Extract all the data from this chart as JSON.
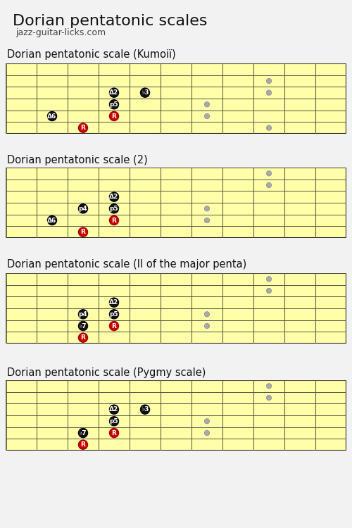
{
  "title": "Dorian pentatonic scales",
  "subtitle": "jazz-guitar-licks.com",
  "bg_color": "#f2f2f2",
  "fretboard_bg": "#ffffaa",
  "diagrams": [
    {
      "title": "Dorian pentatonic scale (Kumoiï)",
      "dots": [
        {
          "fret": 2,
          "string": 4,
          "label": "Δ6",
          "color": "black"
        },
        {
          "fret": 4,
          "string": 4,
          "label": "R",
          "color": "red"
        },
        {
          "fret": 4,
          "string": 3,
          "label": "p5",
          "color": "black"
        },
        {
          "fret": 4,
          "string": 2,
          "label": "Δ2",
          "color": "black"
        },
        {
          "fret": 5,
          "string": 2,
          "label": "♭3",
          "color": "black"
        },
        {
          "fret": 3,
          "string": 5,
          "label": "R",
          "color": "red"
        },
        {
          "fret": 9,
          "string": 5,
          "label": "",
          "color": "gray"
        },
        {
          "fret": 7,
          "string": 4,
          "label": "",
          "color": "gray"
        },
        {
          "fret": 7,
          "string": 3,
          "label": "",
          "color": "gray"
        },
        {
          "fret": 9,
          "string": 2,
          "label": "",
          "color": "gray"
        },
        {
          "fret": 9,
          "string": 1,
          "label": "",
          "color": "gray"
        }
      ]
    },
    {
      "title": "Dorian pentatonic scale (2)",
      "dots": [
        {
          "fret": 2,
          "string": 4,
          "label": "Δ6",
          "color": "black"
        },
        {
          "fret": 4,
          "string": 4,
          "label": "R",
          "color": "red"
        },
        {
          "fret": 3,
          "string": 3,
          "label": "p4",
          "color": "black"
        },
        {
          "fret": 4,
          "string": 3,
          "label": "p5",
          "color": "black"
        },
        {
          "fret": 4,
          "string": 2,
          "label": "Δ2",
          "color": "black"
        },
        {
          "fret": 3,
          "string": 5,
          "label": "R",
          "color": "red"
        },
        {
          "fret": 7,
          "string": 4,
          "label": "",
          "color": "gray"
        },
        {
          "fret": 7,
          "string": 3,
          "label": "",
          "color": "gray"
        },
        {
          "fret": 9,
          "string": 1,
          "label": "",
          "color": "gray"
        },
        {
          "fret": 9,
          "string": 0,
          "label": "",
          "color": "gray"
        }
      ]
    },
    {
      "title": "Dorian pentatonic scale (II of the major penta)",
      "dots": [
        {
          "fret": 3,
          "string": 4,
          "label": "♭7",
          "color": "black"
        },
        {
          "fret": 4,
          "string": 4,
          "label": "R",
          "color": "red"
        },
        {
          "fret": 3,
          "string": 3,
          "label": "p4",
          "color": "black"
        },
        {
          "fret": 4,
          "string": 3,
          "label": "p5",
          "color": "black"
        },
        {
          "fret": 4,
          "string": 2,
          "label": "Δ2",
          "color": "black"
        },
        {
          "fret": 3,
          "string": 5,
          "label": "R",
          "color": "red"
        },
        {
          "fret": 7,
          "string": 4,
          "label": "",
          "color": "gray"
        },
        {
          "fret": 7,
          "string": 3,
          "label": "",
          "color": "gray"
        },
        {
          "fret": 9,
          "string": 1,
          "label": "",
          "color": "gray"
        },
        {
          "fret": 9,
          "string": 0,
          "label": "",
          "color": "gray"
        }
      ]
    },
    {
      "title": "Dorian pentatonic scale (Pygmy scale)",
      "dots": [
        {
          "fret": 3,
          "string": 4,
          "label": "♭7",
          "color": "black"
        },
        {
          "fret": 4,
          "string": 4,
          "label": "R",
          "color": "red"
        },
        {
          "fret": 4,
          "string": 3,
          "label": "p5",
          "color": "black"
        },
        {
          "fret": 4,
          "string": 2,
          "label": "Δ2",
          "color": "black"
        },
        {
          "fret": 5,
          "string": 2,
          "label": "♭3",
          "color": "black"
        },
        {
          "fret": 3,
          "string": 5,
          "label": "R",
          "color": "red"
        },
        {
          "fret": 7,
          "string": 4,
          "label": "",
          "color": "gray"
        },
        {
          "fret": 7,
          "string": 3,
          "label": "",
          "color": "gray"
        },
        {
          "fret": 9,
          "string": 1,
          "label": "",
          "color": "gray"
        },
        {
          "fret": 9,
          "string": 0,
          "label": "",
          "color": "gray"
        }
      ]
    }
  ]
}
